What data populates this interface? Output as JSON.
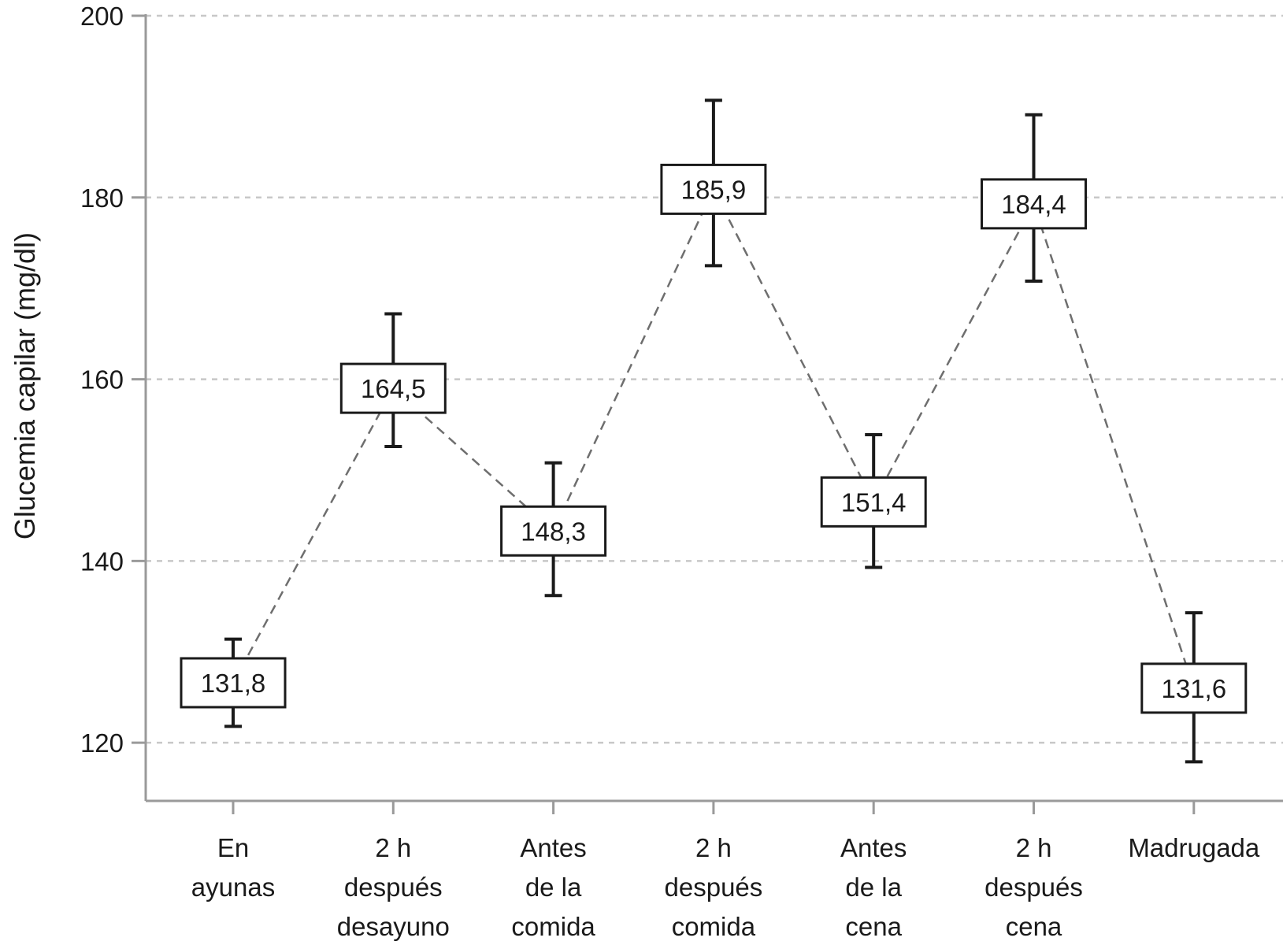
{
  "chart_data": {
    "type": "line",
    "title": "",
    "xlabel": "",
    "ylabel": "Glucemia capilar (mg/dl)",
    "ylim": [
      113.6,
      200
    ],
    "yticks": [
      120,
      140,
      160,
      180,
      200
    ],
    "grid": true,
    "legend": "none",
    "categories": [
      [
        "En",
        "ayunas"
      ],
      [
        "2 h",
        "después",
        "desayuno"
      ],
      [
        "Antes",
        "de la",
        "comida"
      ],
      [
        "2 h",
        "después",
        "comida"
      ],
      [
        "Antes",
        "de la",
        "cena"
      ],
      [
        "2 h",
        "después",
        "cena"
      ],
      [
        "Madrugada"
      ]
    ],
    "series": [
      {
        "values": [
          131.8,
          164.5,
          148.3,
          185.9,
          151.4,
          184.4,
          131.6
        ],
        "value_labels": [
          "131,8",
          "164,5",
          "148,3",
          "185,9",
          "151,4",
          "184,4",
          "131,6"
        ],
        "box_center": [
          126.6,
          159.0,
          143.3,
          180.9,
          146.5,
          179.3,
          126.0
        ],
        "error_low": [
          121.8,
          152.6,
          136.2,
          172.5,
          139.3,
          170.8,
          117.9
        ],
        "error_high": [
          131.4,
          167.2,
          150.8,
          190.7,
          153.9,
          189.1,
          134.3
        ]
      }
    ],
    "colors": {
      "grid": "#c8c8c8",
      "axis": "#9a9a9a",
      "line": "#6e6e6e",
      "error": "#1a1a1a",
      "box_border": "#1a1a1a",
      "box_fill": "#ffffff"
    }
  }
}
